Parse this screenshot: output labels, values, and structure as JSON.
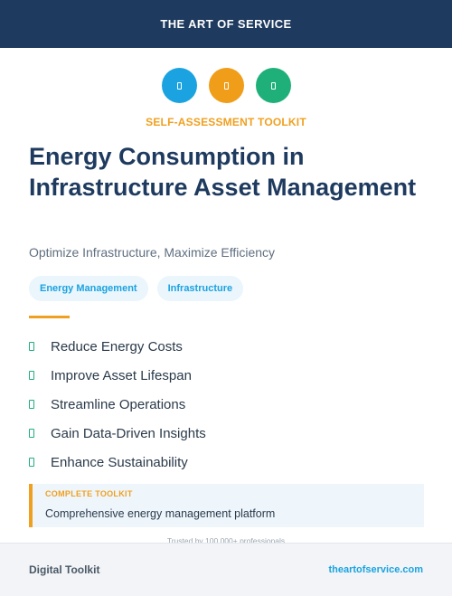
{
  "header": {
    "brand": "THE ART OF SERVICE"
  },
  "icons": [
    {
      "name": "blue-icon",
      "color": "#1aa3e0"
    },
    {
      "name": "orange-icon",
      "color": "#f09d1a"
    },
    {
      "name": "green-icon",
      "color": "#1fb07a"
    }
  ],
  "eyebrow": "SELF-ASSESSMENT TOOLKIT",
  "title": "Energy Consumption in Infrastructure Asset Management",
  "subtitle": "Optimize Infrastructure, Maximize Efficiency",
  "tags": [
    "Energy Management",
    "Infrastructure"
  ],
  "benefits": [
    "Reduce Energy Costs",
    "Improve Asset Lifespan",
    "Streamline Operations",
    "Gain Data-Driven Insights",
    "Enhance Sustainability"
  ],
  "callout": {
    "label": "COMPLETE TOOLKIT",
    "text": "Comprehensive energy management platform"
  },
  "trusted": "Trusted by 100,000+ professionals",
  "footer": {
    "left": "Digital Toolkit",
    "right": "theartofservice.com"
  },
  "colors": {
    "navy": "#1e3a5f",
    "accent_orange": "#f0a020",
    "accent_blue": "#1aa3e0",
    "accent_green": "#1fb07a"
  }
}
